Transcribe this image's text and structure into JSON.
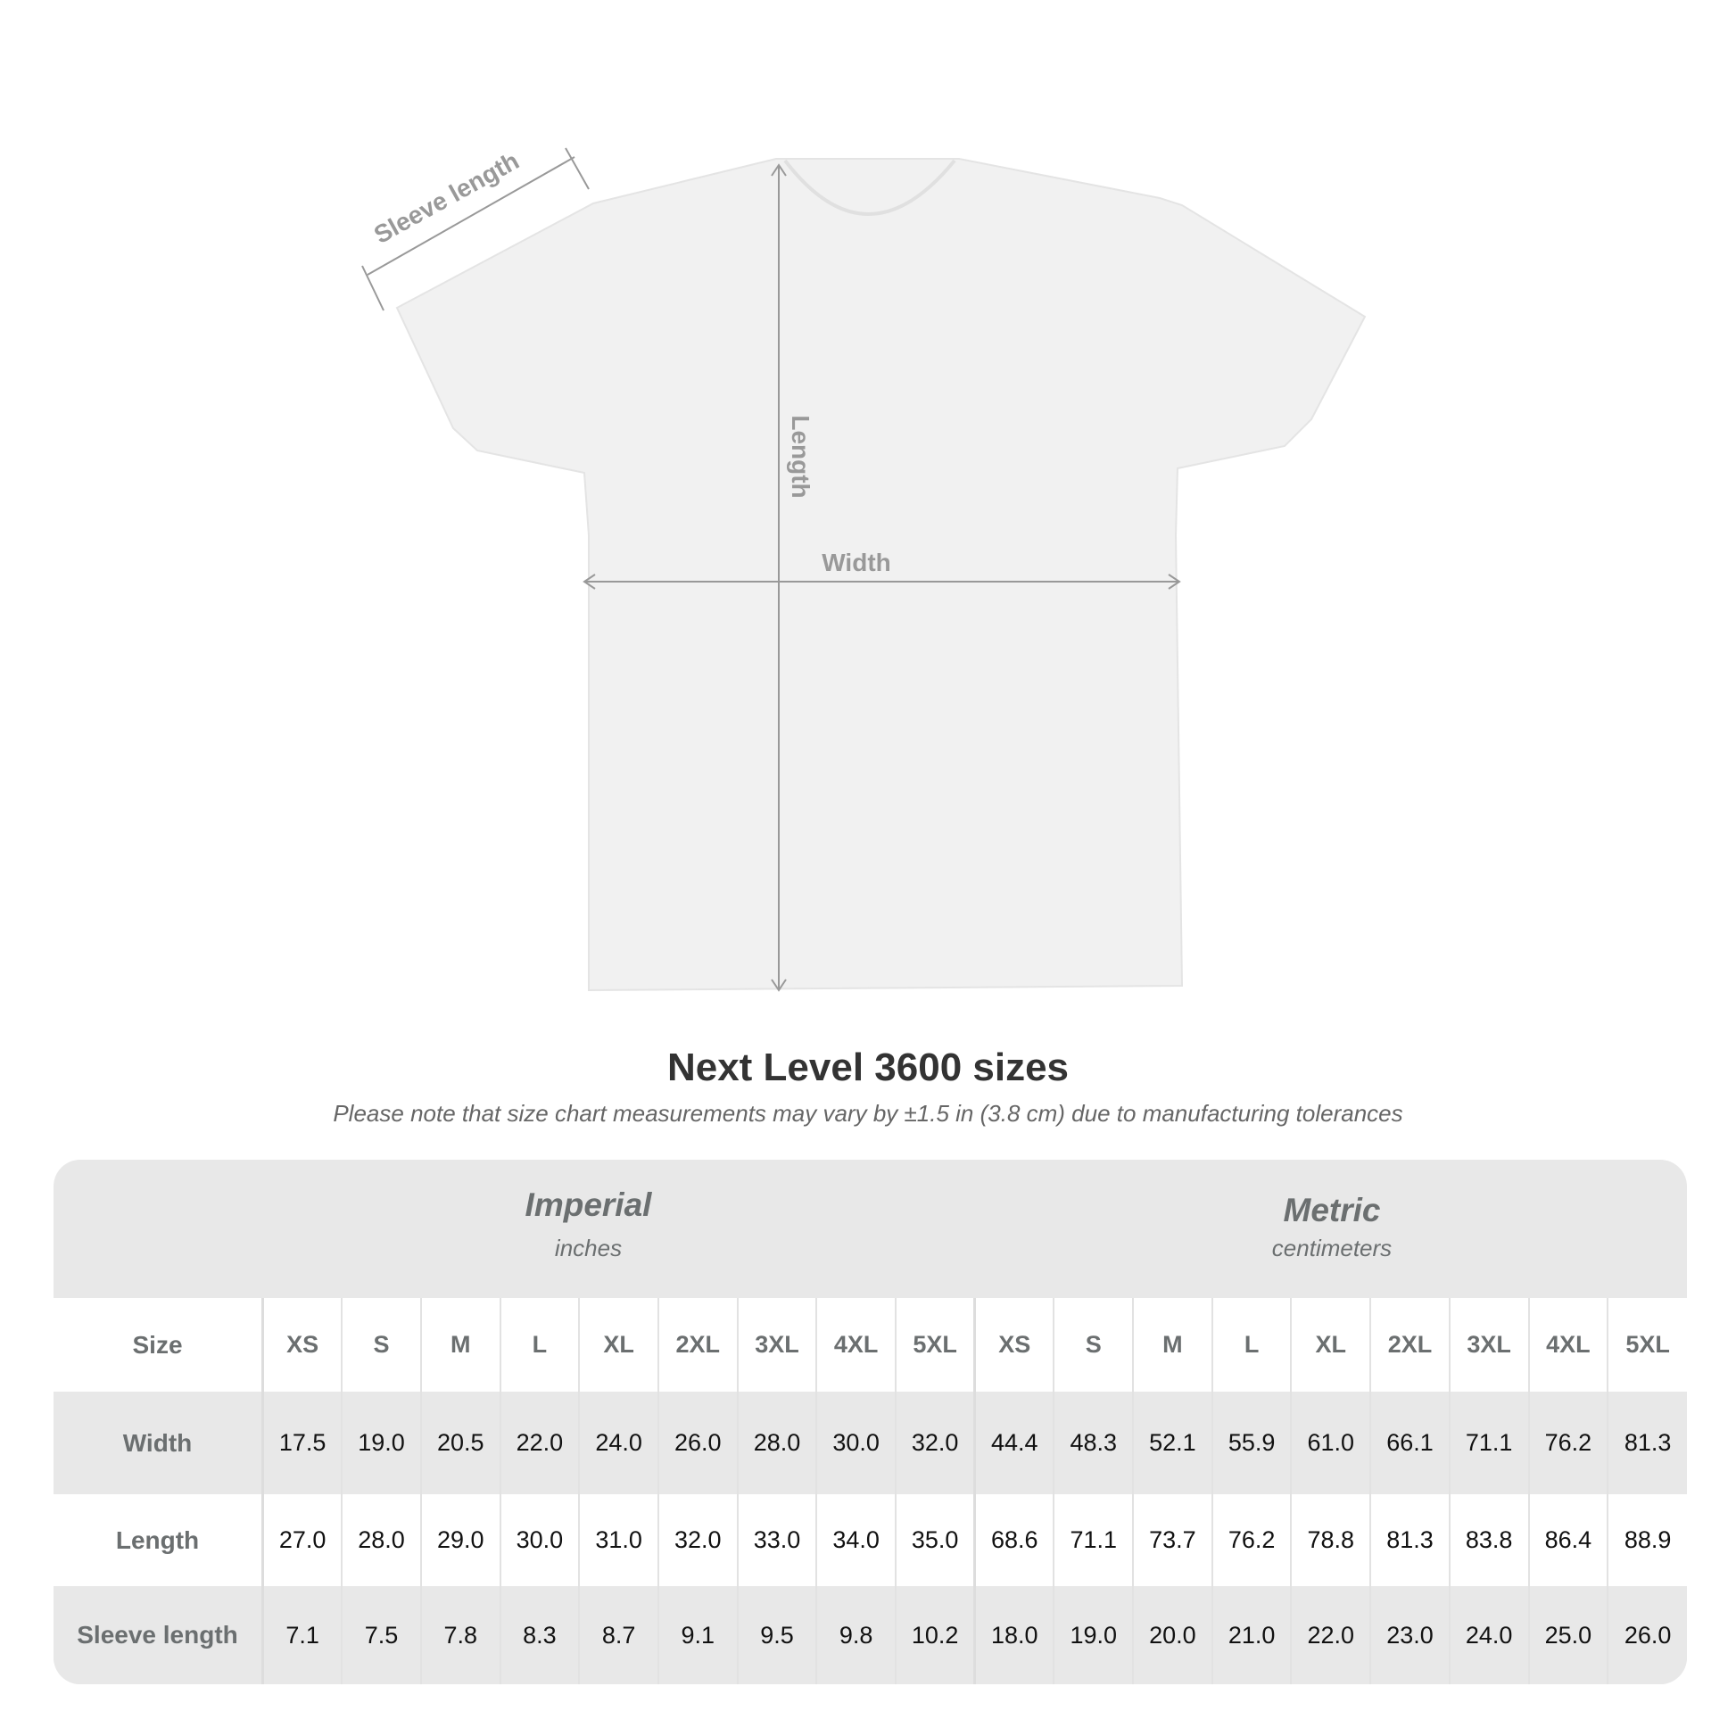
{
  "diagram": {
    "sleeve_label": "Sleeve length",
    "length_label": "Length",
    "width_label": "Width"
  },
  "title": "Next Level 3600 sizes",
  "note": "Please note that size chart measurements may vary by ±1.5 in (3.8 cm) due to manufacturing tolerances",
  "imperial": {
    "heading": "Imperial",
    "unit": "inches"
  },
  "metric": {
    "heading": "Metric",
    "unit": "centimeters"
  },
  "sizes": [
    "XS",
    "S",
    "M",
    "L",
    "XL",
    "2XL",
    "3XL",
    "4XL",
    "5XL"
  ],
  "size_label": "Size",
  "rows": [
    {
      "label": "Width",
      "imperial": [
        "17.5",
        "19.0",
        "20.5",
        "22.0",
        "24.0",
        "26.0",
        "28.0",
        "30.0",
        "32.0"
      ],
      "metric": [
        "44.4",
        "48.3",
        "52.1",
        "55.9",
        "61.0",
        "66.1",
        "71.1",
        "76.2",
        "81.3"
      ]
    },
    {
      "label": "Length",
      "imperial": [
        "27.0",
        "28.0",
        "29.0",
        "30.0",
        "31.0",
        "32.0",
        "33.0",
        "34.0",
        "35.0"
      ],
      "metric": [
        "68.6",
        "71.1",
        "73.7",
        "76.2",
        "78.8",
        "81.3",
        "83.8",
        "86.4",
        "88.9"
      ]
    },
    {
      "label": "Sleeve length",
      "imperial": [
        "7.1",
        "7.5",
        "7.8",
        "8.3",
        "8.7",
        "9.1",
        "9.5",
        "9.8",
        "10.2"
      ],
      "metric": [
        "18.0",
        "19.0",
        "20.0",
        "21.0",
        "22.0",
        "23.0",
        "24.0",
        "25.0",
        "26.0"
      ]
    }
  ]
}
